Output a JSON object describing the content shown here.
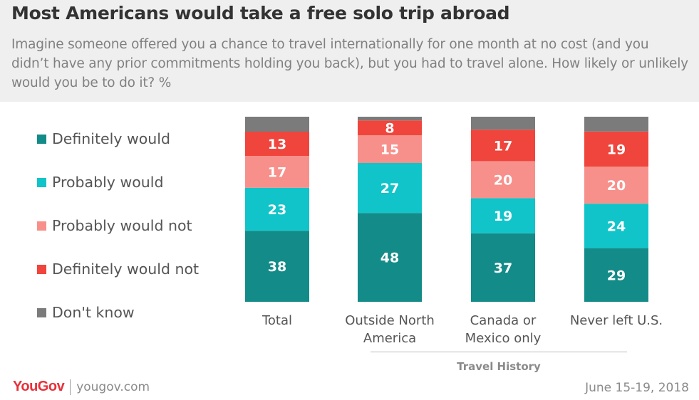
{
  "header": {
    "title": "Most Americans would take a free solo trip abroad",
    "subtitle": "Imagine someone offered you a chance to travel internationally for one month at no cost (and you didn’t have any prior commitments holding you back), but you had to travel alone. How likely or unlikely would you be to do it? %"
  },
  "footer": {
    "brand": "YouGov",
    "url": "yougov.com",
    "date": "June 15-19, 2018"
  },
  "chart_data": {
    "type": "bar",
    "stacked": true,
    "categories": [
      "Total",
      "Outside North America",
      "Canada or Mexico only",
      "Never left U.S."
    ],
    "category_lines": [
      [
        "Total"
      ],
      [
        "Outside North",
        "America"
      ],
      [
        "Canada or",
        "Mexico only"
      ],
      [
        "Never left U.S."
      ]
    ],
    "group_label": "Travel History",
    "ylim": [
      0,
      100
    ],
    "legend_position": "left",
    "series": [
      {
        "name": "Definitely would",
        "color": "#138b88",
        "label_color": "#ffffff",
        "values": [
          38,
          48,
          37,
          29
        ]
      },
      {
        "name": "Probably would",
        "color": "#11c4c9",
        "label_color": "#ffffff",
        "values": [
          23,
          27,
          19,
          24
        ]
      },
      {
        "name": "Probably would not",
        "color": "#f7908b",
        "label_color": "#ffffff",
        "values": [
          17,
          15,
          20,
          20
        ]
      },
      {
        "name": "Definitely would not",
        "color": "#f0453c",
        "label_color": "#ffffff",
        "values": [
          13,
          8,
          17,
          19
        ]
      },
      {
        "name": "Don't know",
        "color": "#7b7b7b",
        "label_color": "#ffffff",
        "values": [
          8,
          2,
          7,
          8
        ]
      }
    ],
    "show_value_labels": [
      true,
      true,
      true,
      true,
      false
    ]
  }
}
